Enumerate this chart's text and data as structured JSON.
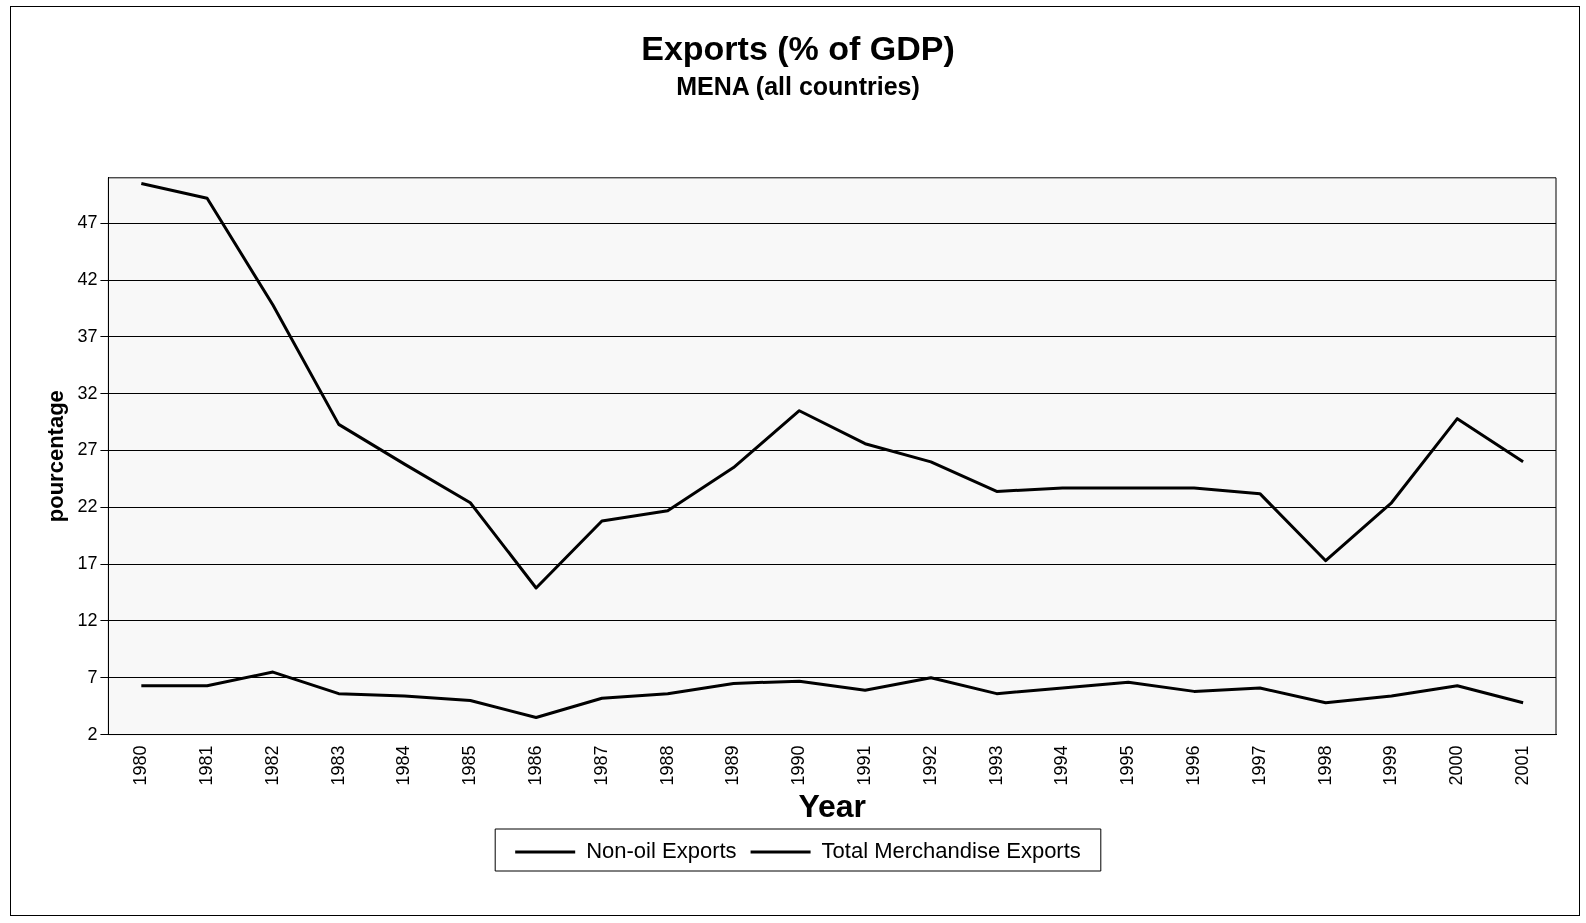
{
  "chart_data": {
    "type": "line",
    "title": "Exports (% of GDP)",
    "subtitle": "MENA (all countries)",
    "xlabel": "Year",
    "ylabel": "pourcentage",
    "categories": [
      "1980",
      "1981",
      "1982",
      "1983",
      "1984",
      "1985",
      "1986",
      "1987",
      "1988",
      "1989",
      "1990",
      "1991",
      "1992",
      "1993",
      "1994",
      "1995",
      "1996",
      "1997",
      "1998",
      "1999",
      "2000",
      "2001"
    ],
    "series": [
      {
        "name": "Non-oil Exports",
        "color": "#000000",
        "values": [
          6.3,
          6.3,
          7.5,
          5.6,
          5.4,
          5.0,
          3.5,
          5.2,
          5.6,
          6.5,
          6.7,
          5.9,
          7.0,
          5.6,
          6.1,
          6.6,
          5.8,
          6.1,
          4.8,
          5.4,
          6.3,
          4.8
        ]
      },
      {
        "name": "Total Merchandise Exports",
        "color": "#000000",
        "values": [
          50.5,
          49.2,
          39.8,
          29.3,
          25.8,
          22.4,
          14.9,
          20.8,
          21.7,
          25.5,
          30.5,
          27.6,
          26.0,
          23.4,
          23.7,
          23.7,
          23.7,
          23.2,
          17.3,
          22.4,
          29.8,
          26.0
        ]
      }
    ],
    "ylim": [
      2,
      51
    ],
    "yticks": [
      2,
      7,
      12,
      17,
      22,
      27,
      32,
      37,
      42,
      47
    ],
    "grid": "y",
    "legend": "bottom",
    "marker": "none",
    "line_style": "solid"
  }
}
